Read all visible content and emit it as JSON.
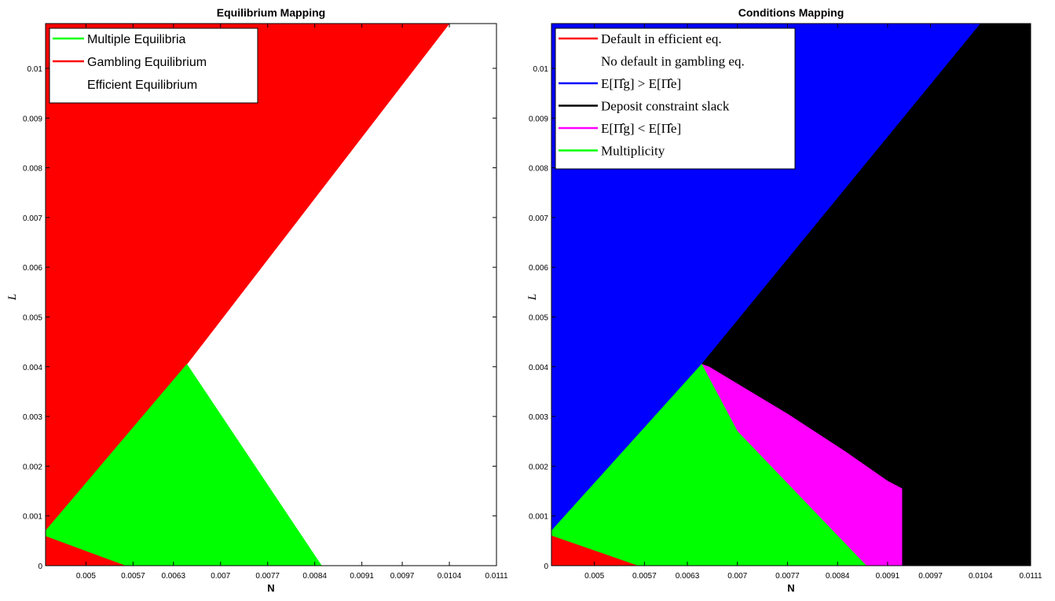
{
  "chart_data": [
    {
      "type": "heatmap",
      "title": "Equilibrium Mapping",
      "xlabel": "N",
      "ylabel": "L",
      "xlim": [
        0.0044,
        0.0111
      ],
      "ylim": [
        0,
        0.0109
      ],
      "x_ticks": [
        "0.005",
        "0.0057",
        "0.0063",
        "0.007",
        "0.0077",
        "0.0084",
        "0.0091",
        "0.0097",
        "0.0104",
        "0.0111"
      ],
      "y_ticks": [
        "0",
        "0.001",
        "0.002",
        "0.003",
        "0.004",
        "0.005",
        "0.006",
        "0.007",
        "0.008",
        "0.009",
        "0.01"
      ],
      "grid": false,
      "legend_position": "top-left",
      "legend": [
        {
          "label": "Multiple Equilibria",
          "color": "#00ff00"
        },
        {
          "label": "Gambling Equilibrium",
          "color": "#ff0000"
        },
        {
          "label": "Efficient Equilibrium",
          "color": "#ffffff"
        }
      ],
      "regions": [
        {
          "series": "Gambling Equilibrium",
          "color": "#ff0000",
          "polygon": [
            [
              0.0044,
              0.0109
            ],
            [
              0.0104,
              0.0109
            ],
            [
              0.0065,
              0.00405
            ],
            [
              0.0044,
              0.0007
            ]
          ]
        },
        {
          "series": "Gambling Equilibrium",
          "color": "#ff0000",
          "polygon": [
            [
              0.0044,
              0.0006
            ],
            [
              0.0056,
              0.0
            ],
            [
              0.0044,
              0.0
            ]
          ]
        },
        {
          "series": "Multiple Equilibria",
          "color": "#00ff00",
          "polygon": [
            [
              0.0044,
              0.0007
            ],
            [
              0.0065,
              0.00405
            ],
            [
              0.0085,
              0.0
            ],
            [
              0.0056,
              0.0
            ],
            [
              0.0044,
              0.0006
            ]
          ]
        }
      ]
    },
    {
      "type": "heatmap",
      "title": "Conditions Mapping",
      "xlabel": "N",
      "ylabel": "L",
      "xlim": [
        0.0044,
        0.0111
      ],
      "ylim": [
        0,
        0.0109
      ],
      "x_ticks": [
        "0.005",
        "0.0057",
        "0.0063",
        "0.007",
        "0.0077",
        "0.0084",
        "0.0091",
        "0.0097",
        "0.0104",
        "0.0111"
      ],
      "y_ticks": [
        "0",
        "0.001",
        "0.002",
        "0.003",
        "0.004",
        "0.005",
        "0.006",
        "0.007",
        "0.008",
        "0.009",
        "0.01"
      ],
      "grid": false,
      "legend_position": "top-left",
      "legend": [
        {
          "label": "Default in efficient eq.",
          "label2": "No default in gambling eq.",
          "color": "#ff0000"
        },
        {
          "label": "E[Π̂g] > E[Π̂e]",
          "color": "#0000ff"
        },
        {
          "label": "Deposit constraint slack",
          "color": "#000000"
        },
        {
          "label": "E[Π̂g] < E[Π̂e]",
          "color": "#ff00ff"
        },
        {
          "label": "Multiplicity",
          "color": "#00ff00"
        }
      ],
      "regions": [
        {
          "series": "E[Π̂g] > E[Π̂e]",
          "color": "#0000ff",
          "polygon": [
            [
              0.0044,
              0.0109
            ],
            [
              0.0104,
              0.0109
            ],
            [
              0.0065,
              0.00405
            ],
            [
              0.0044,
              0.0007
            ]
          ]
        },
        {
          "series": "Deposit constraint slack",
          "color": "#000000",
          "polygon": [
            [
              0.0104,
              0.0109
            ],
            [
              0.0111,
              0.0109
            ],
            [
              0.0111,
              0.0
            ],
            [
              0.0093,
              0.0
            ],
            [
              0.0093,
              0.00155
            ],
            [
              0.0091,
              0.0017
            ],
            [
              0.0085,
              0.0023
            ],
            [
              0.0077,
              0.00305
            ],
            [
              0.0066,
              0.004
            ],
            [
              0.0065,
              0.00405
            ]
          ]
        },
        {
          "series": "E[Π̂g] < E[Π̂e]",
          "color": "#ff00ff",
          "polygon": [
            [
              0.0065,
              0.00405
            ],
            [
              0.0066,
              0.004
            ],
            [
              0.0077,
              0.00305
            ],
            [
              0.0085,
              0.0023
            ],
            [
              0.0091,
              0.0017
            ],
            [
              0.0093,
              0.00155
            ],
            [
              0.0093,
              0.0
            ],
            [
              0.0088,
              0.0
            ],
            [
              0.007,
              0.0027
            ]
          ]
        },
        {
          "series": "Multiplicity",
          "color": "#00ff00",
          "polygon": [
            [
              0.0044,
              0.0007
            ],
            [
              0.0065,
              0.00405
            ],
            [
              0.007,
              0.0027
            ],
            [
              0.0088,
              0.0
            ],
            [
              0.0056,
              0.0
            ],
            [
              0.0044,
              0.0006
            ]
          ]
        },
        {
          "series": "Default in efficient eq.",
          "color": "#ff0000",
          "polygon": [
            [
              0.0044,
              0.0006
            ],
            [
              0.0056,
              0.0
            ],
            [
              0.0044,
              0.0
            ]
          ]
        }
      ]
    }
  ]
}
